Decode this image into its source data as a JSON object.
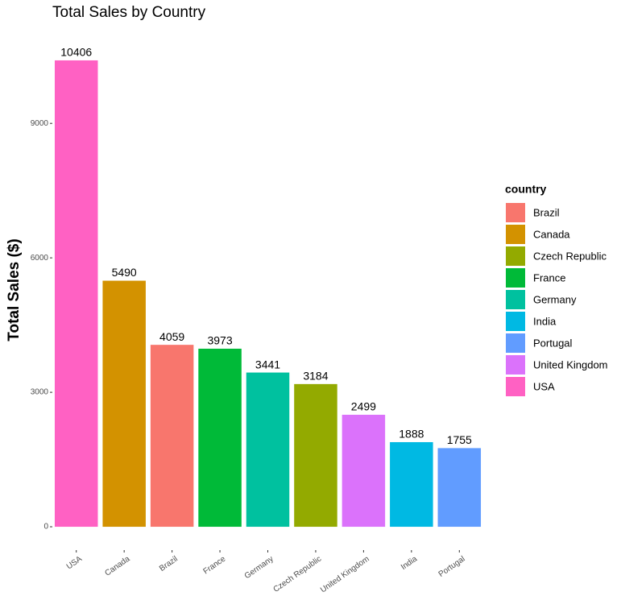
{
  "chart_data": {
    "type": "bar",
    "title": "Total Sales by Country",
    "y_label": "Total Sales ($)",
    "categories": [
      "USA",
      "Canada",
      "Brazil",
      "France",
      "Germany",
      "Czech Republic",
      "United Kingdom",
      "India",
      "Portugal"
    ],
    "values": [
      10406,
      5490,
      4059,
      3973,
      3441,
      3184,
      2499,
      1888,
      1755
    ],
    "ylim": [
      -520.3,
      10926.3
    ],
    "yticks": [
      0,
      3000,
      6000,
      9000
    ],
    "grid": false,
    "legend": {
      "title": "country",
      "position": "right",
      "items": [
        {
          "name": "Brazil",
          "color": "#F8766D"
        },
        {
          "name": "Canada",
          "color": "#D39200"
        },
        {
          "name": "Czech Republic",
          "color": "#93AA00"
        },
        {
          "name": "France",
          "color": "#00BA38"
        },
        {
          "name": "Germany",
          "color": "#00C19F"
        },
        {
          "name": "India",
          "color": "#00B9E3"
        },
        {
          "name": "Portugal",
          "color": "#619CFF"
        },
        {
          "name": "United Kingdom",
          "color": "#DB72FB"
        },
        {
          "name": "USA",
          "color": "#FF61C3"
        }
      ]
    }
  }
}
